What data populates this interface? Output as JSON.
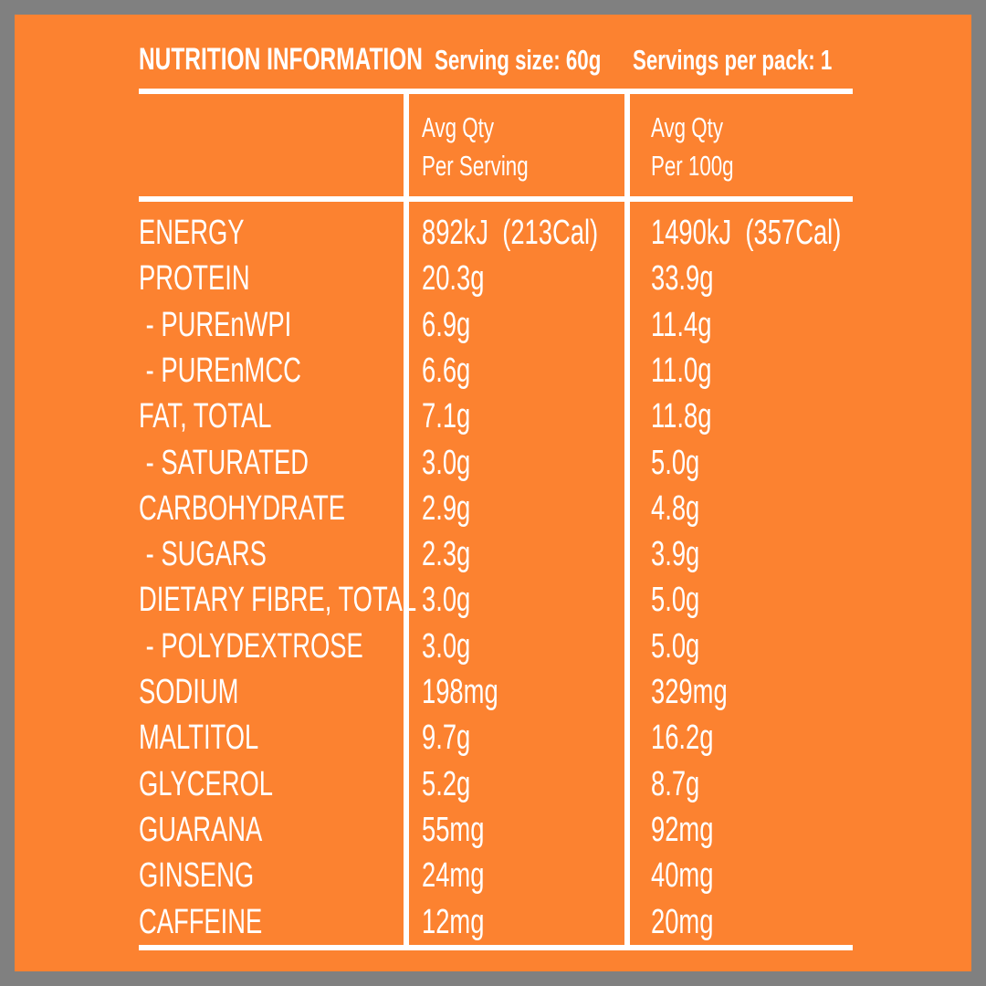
{
  "header": {
    "title": "NUTRITION INFORMATION",
    "serving_size": "Serving size: 60g",
    "servings_per_pack": "Servings per pack: 1"
  },
  "columns": {
    "per_serving": [
      "Avg Qty",
      "Per Serving"
    ],
    "per_100g": [
      "Avg Qty",
      "Per 100g"
    ]
  },
  "rows": [
    {
      "label": "ENERGY",
      "per_serving": "892kJ  (213Cal)",
      "per_100g": "1490kJ  (357Cal)"
    },
    {
      "label": "PROTEIN",
      "per_serving": "20.3g",
      "per_100g": "33.9g"
    },
    {
      "label": " - PUREnWPI",
      "per_serving": "6.9g",
      "per_100g": "11.4g"
    },
    {
      "label": " - PUREnMCC",
      "per_serving": "6.6g",
      "per_100g": "11.0g"
    },
    {
      "label": "FAT, TOTAL",
      "per_serving": "7.1g",
      "per_100g": "11.8g"
    },
    {
      "label": " - SATURATED",
      "per_serving": "3.0g",
      "per_100g": "5.0g"
    },
    {
      "label": "CARBOHYDRATE",
      "per_serving": "2.9g",
      "per_100g": "4.8g"
    },
    {
      "label": " - SUGARS",
      "per_serving": "2.3g",
      "per_100g": "3.9g"
    },
    {
      "label": "DIETARY FIBRE, TOTAL",
      "per_serving": "3.0g",
      "per_100g": "5.0g"
    },
    {
      "label": " - POLYDEXTROSE",
      "per_serving": "3.0g",
      "per_100g": "5.0g"
    },
    {
      "label": "SODIUM",
      "per_serving": "198mg",
      "per_100g": "329mg"
    },
    {
      "label": "MALTITOL",
      "per_serving": "9.7g",
      "per_100g": "16.2g"
    },
    {
      "label": "GLYCEROL",
      "per_serving": "5.2g",
      "per_100g": "8.7g"
    },
    {
      "label": "GUARANA",
      "per_serving": "55mg",
      "per_100g": "92mg"
    },
    {
      "label": "GINSENG",
      "per_serving": "24mg",
      "per_100g": "40mg"
    },
    {
      "label": "CAFFEINE",
      "per_serving": "12mg",
      "per_100g": "20mg"
    }
  ],
  "colors": {
    "background": "#fc8230",
    "border": "#808080",
    "text": "#ffffff"
  }
}
